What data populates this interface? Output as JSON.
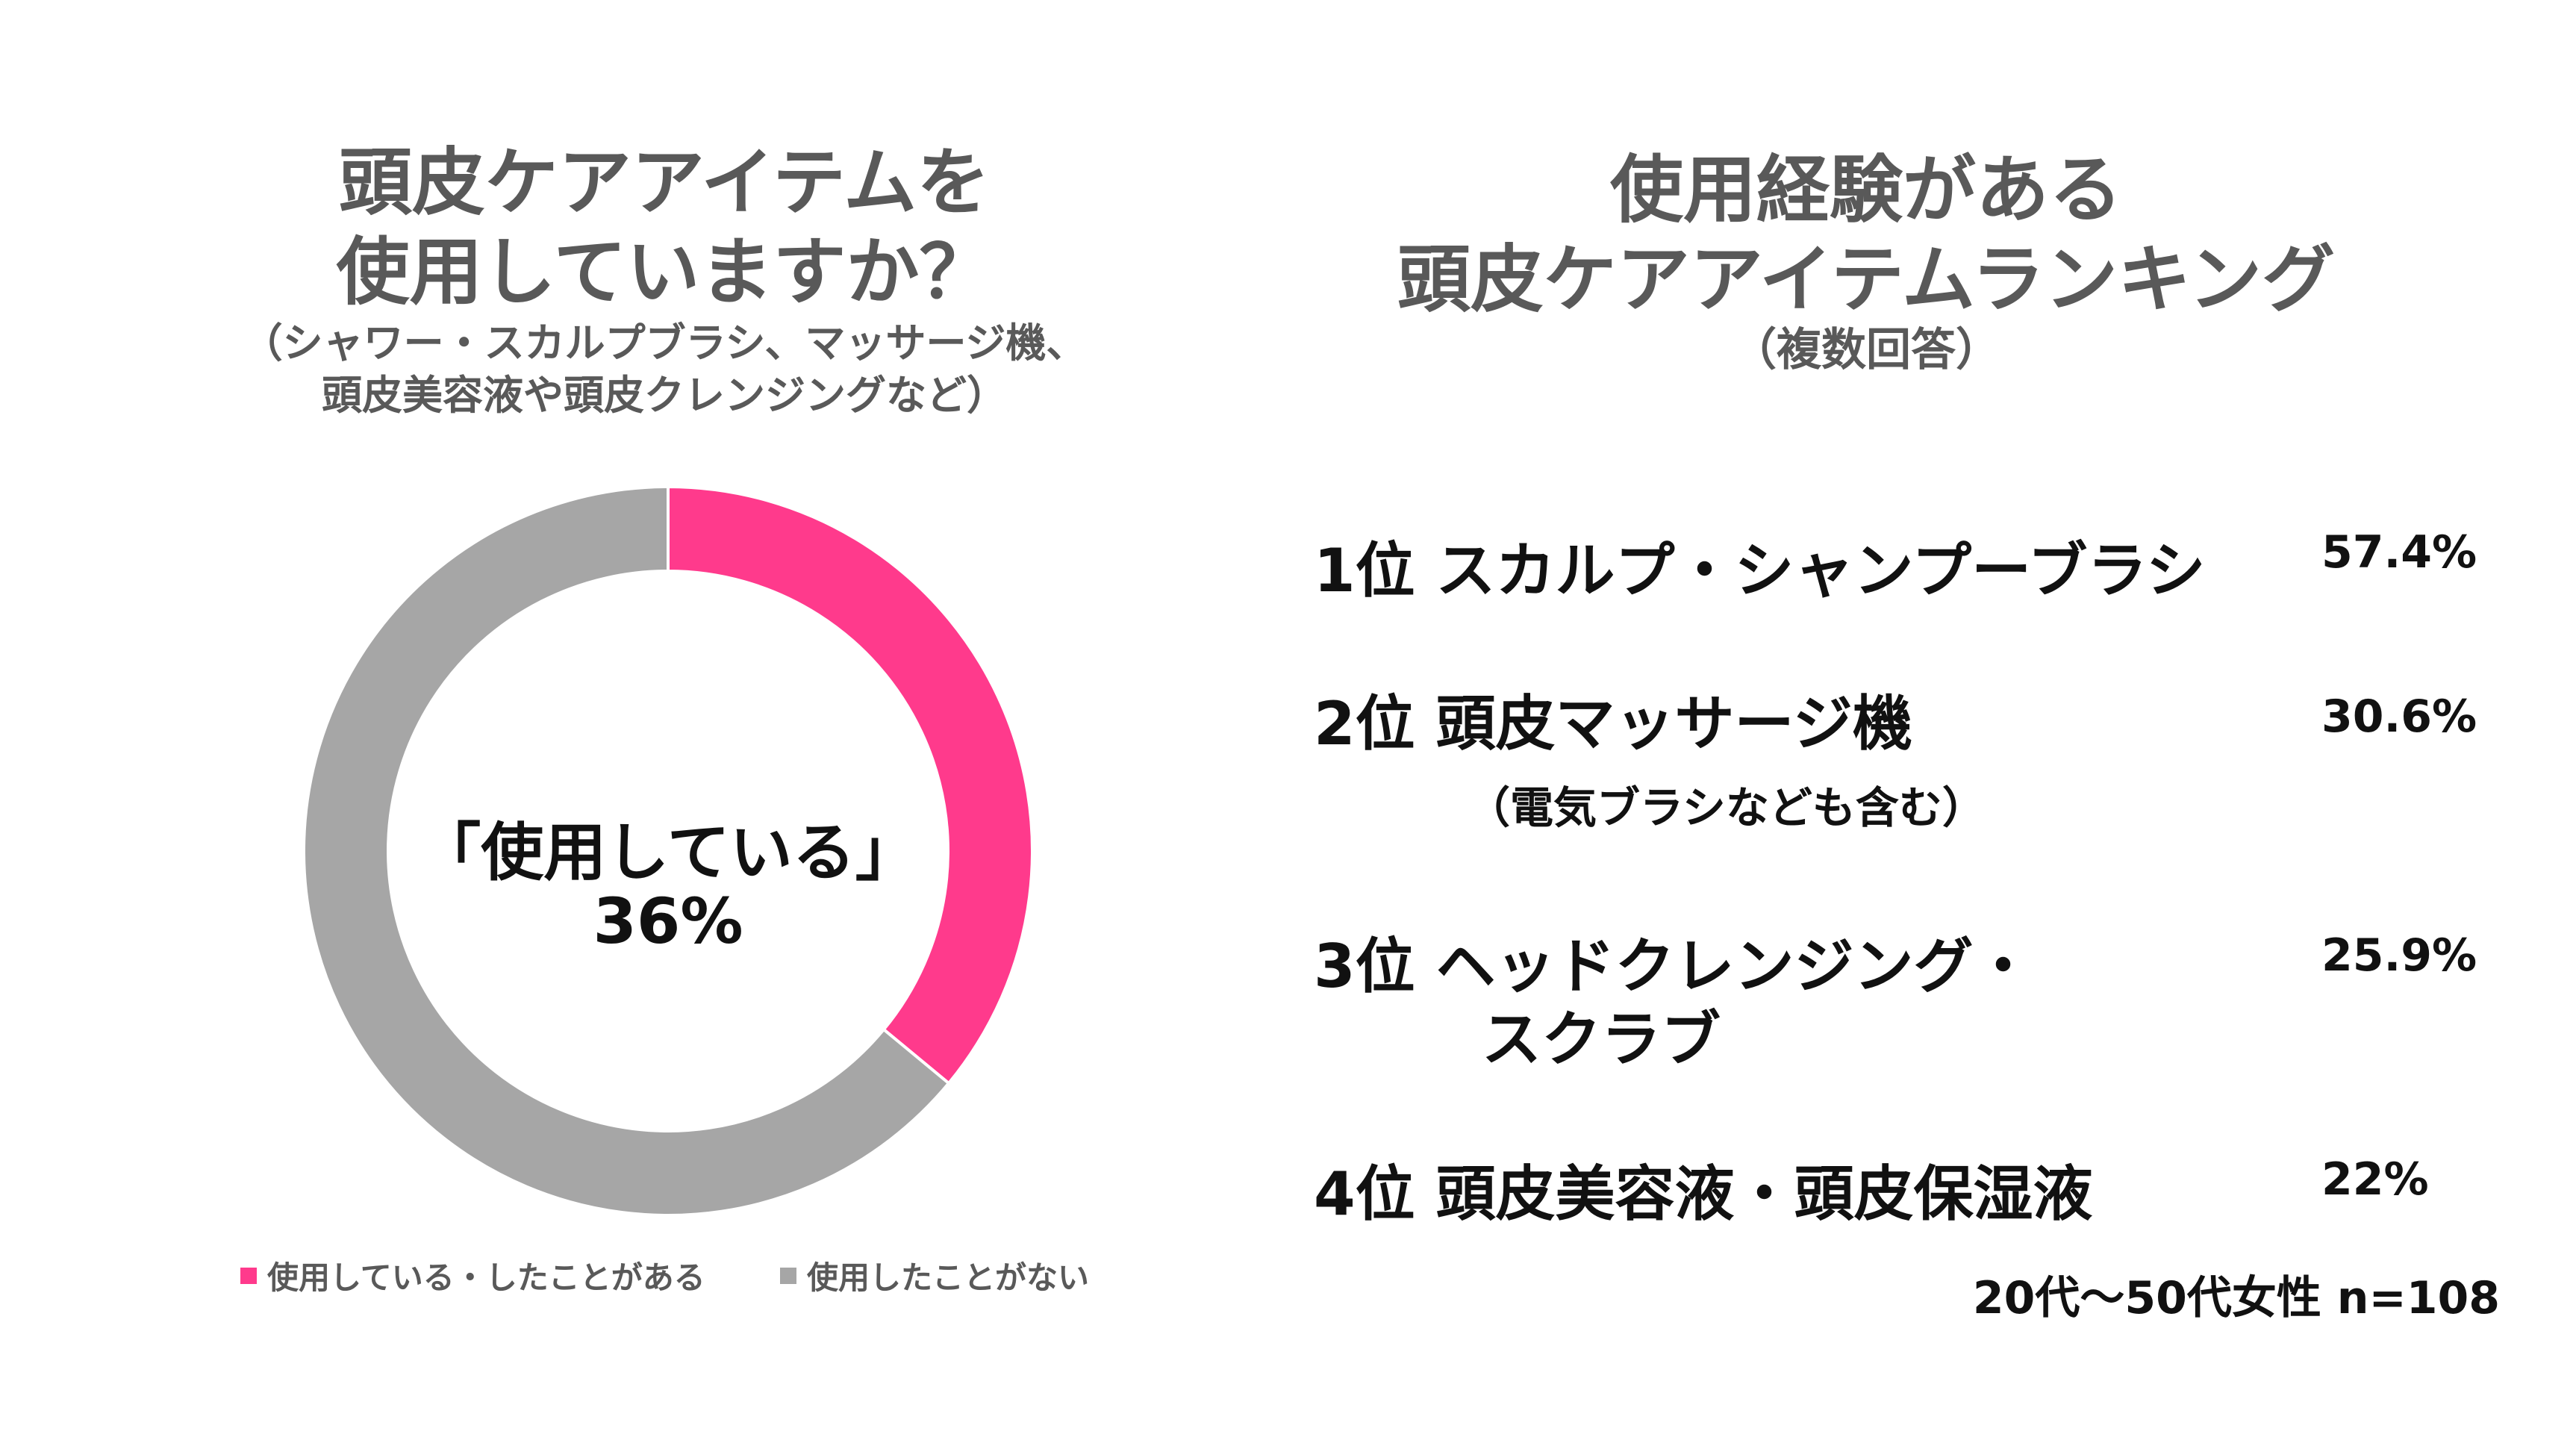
{
  "left": {
    "title_line1": "頭皮ケアアイテムを",
    "title_line2": "使用していますか？",
    "subtitle_line1": "（シャワー・スカルプブラシ、マッサージ機、",
    "subtitle_line2": "頭皮美容液や頭皮クレンジングなど）",
    "center_line1": "「使用している」",
    "center_line2": "36%"
  },
  "right": {
    "title_line1": "使用経験がある",
    "title_line2": "頭皮ケアアイテムランキング",
    "subtitle": "（複数回答）",
    "ranking": [
      {
        "label": "1位 スカルプ・シャンプーブラシ",
        "percent": "57.4%"
      },
      {
        "label": "2位 頭皮マッサージ機",
        "sublabel": "（電気ブラシなども含む）",
        "percent": "30.6%"
      },
      {
        "label": "3位 ヘッドクレンジング・",
        "sublabel": "スクラブ",
        "percent": "25.9%"
      },
      {
        "label": "4位 頭皮美容液・頭皮保湿液",
        "percent": "22%"
      }
    ],
    "footnote": "20代～50代女性 n=108"
  },
  "colors": {
    "used": "#FF3A8C",
    "unused": "#A6A6A6"
  },
  "chart_data": [
    {
      "type": "pie",
      "donut": true,
      "categories": [
        "使用している・したことがある",
        "使用したことがない"
      ],
      "values": [
        36,
        64
      ],
      "colors": [
        "#FF3A8C",
        "#A6A6A6"
      ],
      "legend": [
        "使用している・したことがある",
        "使用したことがない"
      ],
      "legend_position": "bottom",
      "center_label": "「使用している」 36%"
    },
    {
      "type": "table",
      "columns": [
        "rank",
        "item",
        "percent"
      ],
      "rows": [
        [
          1,
          "スカルプ・シャンプーブラシ",
          57.4
        ],
        [
          2,
          "頭皮マッサージ機（電気ブラシなども含む）",
          30.6
        ],
        [
          3,
          "ヘッドクレンジング・スクラブ",
          25.9
        ],
        [
          4,
          "頭皮美容液・頭皮保湿液",
          22
        ]
      ]
    }
  ]
}
